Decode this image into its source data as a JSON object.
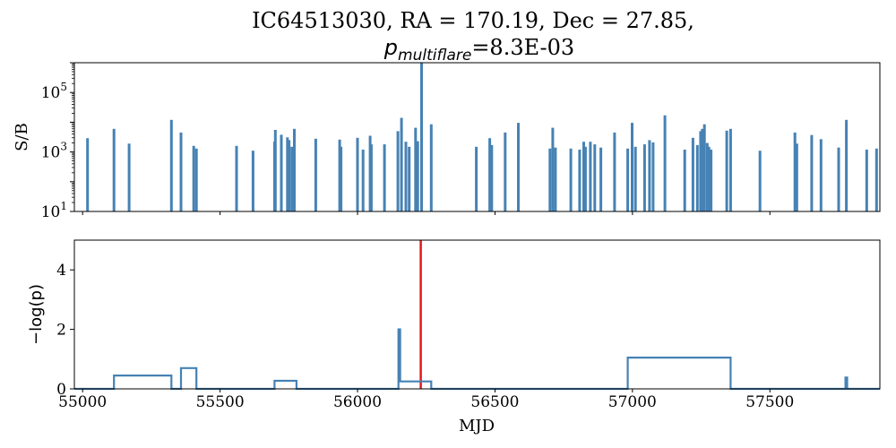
{
  "title": "IC64513030, RA = 170.19, Dec = 27.85,",
  "subtitle": {
    "symbol": "p",
    "subscript": "multiflare",
    "value": "=8.3E-03"
  },
  "colors": {
    "series": "#4682b4",
    "marker_line": "#e31a1c",
    "axes": "#000000"
  },
  "chart_data": [
    {
      "type": "bar",
      "panel": "top",
      "ylabel": "S/B",
      "yscale": "log",
      "ylim": [
        10,
        1000000
      ],
      "xlim": [
        54970,
        57900
      ],
      "yticks": [
        {
          "value": 10,
          "base": "10",
          "exp": "1"
        },
        {
          "value": 1000,
          "base": "10",
          "exp": "3"
        },
        {
          "value": 100000,
          "base": "10",
          "exp": "5"
        }
      ],
      "x": [
        55018,
        55114,
        55169,
        55323,
        55358,
        55404,
        55414,
        55560,
        55620,
        55698,
        55701,
        55723,
        55745,
        55751,
        55761,
        55770,
        55848,
        55935,
        55940,
        56000,
        56020,
        56046,
        56050,
        56098,
        56147,
        56160,
        56176,
        56188,
        56211,
        56219,
        56233,
        56268,
        56432,
        56481,
        56488,
        56537,
        56585,
        56700,
        56710,
        56720,
        56776,
        56808,
        56823,
        56829,
        56847,
        56863,
        56885,
        56935,
        56983,
        56999,
        57011,
        57044,
        57062,
        57075,
        57118,
        57190,
        57220,
        57236,
        57248,
        57254,
        57262,
        57272,
        57278,
        57286,
        57343,
        57357,
        57464,
        57591,
        57598,
        57652,
        57686,
        57750,
        57778,
        57852,
        57888
      ],
      "values": [
        2900,
        6000,
        1900,
        12000,
        4500,
        1600,
        1300,
        1600,
        1100,
        2200,
        5500,
        3800,
        3100,
        2500,
        1500,
        6000,
        2800,
        2600,
        1500,
        3000,
        1200,
        3500,
        1800,
        1800,
        5000,
        14000,
        2200,
        1500,
        6500,
        2300,
        1000000,
        8500,
        1500,
        2900,
        1700,
        4500,
        9500,
        1300,
        6500,
        1400,
        1300,
        1200,
        2200,
        1500,
        2200,
        1800,
        1400,
        4500,
        1300,
        9500,
        1500,
        1800,
        2500,
        2100,
        17000,
        1200,
        3000,
        1700,
        5000,
        6000,
        8500,
        2000,
        1500,
        1200,
        5200,
        6000,
        1100,
        4500,
        1900,
        3700,
        2700,
        1400,
        12000,
        1200,
        1300
      ]
    },
    {
      "type": "line",
      "panel": "bottom",
      "xlabel": "MJD",
      "ylabel": "−log(p)",
      "xlim": [
        54970,
        57900
      ],
      "ylim": [
        0,
        5
      ],
      "xticks": [
        55000,
        55500,
        56000,
        56500,
        57000,
        57500
      ],
      "yticks": [
        0,
        2,
        4
      ],
      "vertical_marker_x": 56230,
      "x": [
        54970,
        55114,
        55114,
        55323,
        55323,
        55358,
        55358,
        55414,
        55414,
        55698,
        55698,
        55778,
        55778,
        56149,
        56149,
        56155,
        56155,
        56160,
        56160,
        56268,
        56268,
        56983,
        56983,
        57357,
        57357,
        57775,
        57775,
        57781,
        57781,
        57900
      ],
      "values": [
        0,
        0,
        0.45,
        0.45,
        0,
        0,
        0.7,
        0.7,
        0,
        0,
        0.27,
        0.27,
        0,
        0,
        2.0,
        2.0,
        0.25,
        0.25,
        0.25,
        0.25,
        0,
        0,
        1.05,
        1.05,
        0,
        0,
        0.38,
        0.38,
        0,
        0
      ]
    }
  ]
}
